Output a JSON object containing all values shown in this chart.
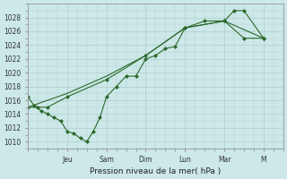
{
  "xlabel": "Pression niveau de la mer( hPa )",
  "bg_color": "#cce8e8",
  "grid_color": "#b0cccc",
  "line_color": "#2d6a2d",
  "ylim": [
    1009,
    1030
  ],
  "yticks": [
    1010,
    1012,
    1014,
    1016,
    1018,
    1020,
    1022,
    1024,
    1026,
    1028
  ],
  "day_labels": [
    "Jeu",
    "Sam",
    "Dim",
    "Lun",
    "Mar",
    "M"
  ],
  "day_positions": [
    2.0,
    4.0,
    6.0,
    8.0,
    10.0,
    12.0
  ],
  "xlim": [
    0,
    13
  ],
  "series1_x": [
    0.0,
    0.33,
    0.67,
    1.0,
    1.33,
    1.67,
    2.0,
    2.33,
    2.67,
    3.0,
    3.33,
    3.67,
    4.0,
    4.5,
    5.0,
    5.5,
    6.0,
    6.5,
    7.0,
    7.5,
    8.0,
    9.0,
    10.0,
    10.5,
    11.0,
    12.0
  ],
  "series1_y": [
    1016.5,
    1015.2,
    1014.5,
    1014.0,
    1013.5,
    1013.0,
    1011.5,
    1011.2,
    1010.5,
    1010.0,
    1011.5,
    1013.5,
    1016.5,
    1018.0,
    1019.5,
    1019.5,
    1022.0,
    1022.5,
    1023.5,
    1023.8,
    1026.5,
    1027.5,
    1027.5,
    1029.0,
    1029.0,
    1025.0
  ],
  "series2_x": [
    0.0,
    0.5,
    1.0,
    2.0,
    4.0,
    6.0,
    8.0,
    10.0,
    11.0,
    12.0
  ],
  "series2_y": [
    1015.0,
    1015.0,
    1015.0,
    1016.5,
    1019.0,
    1022.5,
    1026.5,
    1027.5,
    1025.0,
    1025.0
  ],
  "series3_x": [
    0.0,
    2.0,
    4.0,
    6.0,
    8.0,
    10.0,
    12.0
  ],
  "series3_y": [
    1015.0,
    1017.0,
    1019.5,
    1022.5,
    1026.5,
    1027.5,
    1025.0
  ]
}
